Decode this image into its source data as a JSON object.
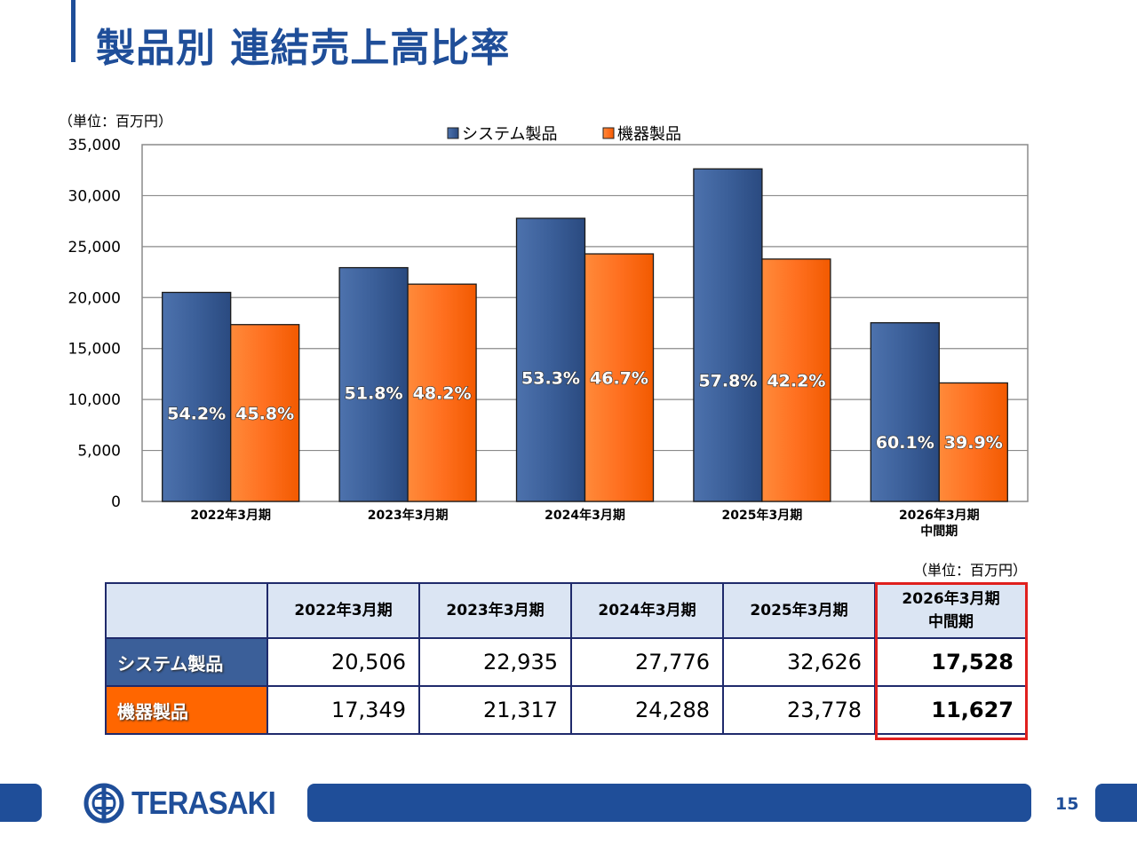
{
  "header": {
    "title": "製品別 連結売上高比率"
  },
  "chart_unit": "（単位：百万円）",
  "table_unit": "（単位：百万円）",
  "chart_data": {
    "type": "bar",
    "title": "",
    "xlabel": "",
    "ylabel": "",
    "ylim": [
      0,
      35000
    ],
    "yticks": [
      "0",
      "5,000",
      "10,000",
      "15,000",
      "20,000",
      "25,000",
      "30,000",
      "35,000"
    ],
    "ytick_values": [
      0,
      5000,
      10000,
      15000,
      20000,
      25000,
      30000,
      35000
    ],
    "grid": true,
    "legend": "top-center",
    "categories": [
      [
        "2022年3月期"
      ],
      [
        "2023年3月期"
      ],
      [
        "2024年3月期"
      ],
      [
        "2025年3月期"
      ],
      [
        "2026年3月期",
        "中間期"
      ]
    ],
    "series": [
      {
        "name": "システム製品",
        "color": "#3b5f99",
        "values": [
          20506,
          22935,
          27776,
          32626,
          17528
        ],
        "labels": [
          "54.2%",
          "51.8%",
          "53.3%",
          "57.8%",
          "60.1%"
        ]
      },
      {
        "name": "機器製品",
        "color": "#ff6a10",
        "values": [
          17349,
          21317,
          24288,
          23778,
          11627
        ],
        "labels": [
          "45.8%",
          "48.2%",
          "46.7%",
          "42.2%",
          "39.9%"
        ]
      }
    ]
  },
  "table": {
    "headers": [
      "2022年3月期",
      "2023年3月期",
      "2024年3月期",
      "2025年3月期",
      "2026年3月期",
      "中間期"
    ],
    "rows": [
      {
        "label": "システム製品",
        "values": [
          "20,506",
          "22,935",
          "27,776",
          "32,626",
          "17,528"
        ]
      },
      {
        "label": "機器製品",
        "values": [
          "17,349",
          "21,317",
          "24,288",
          "23,778",
          "11,627"
        ]
      }
    ]
  },
  "footer": {
    "logo_text": "TERASAKI",
    "page_number": "15"
  },
  "colors": {
    "brand": "#1f4e99",
    "system": "#3b5f99",
    "device": "#ff6600",
    "highlight": "#e0201e"
  }
}
